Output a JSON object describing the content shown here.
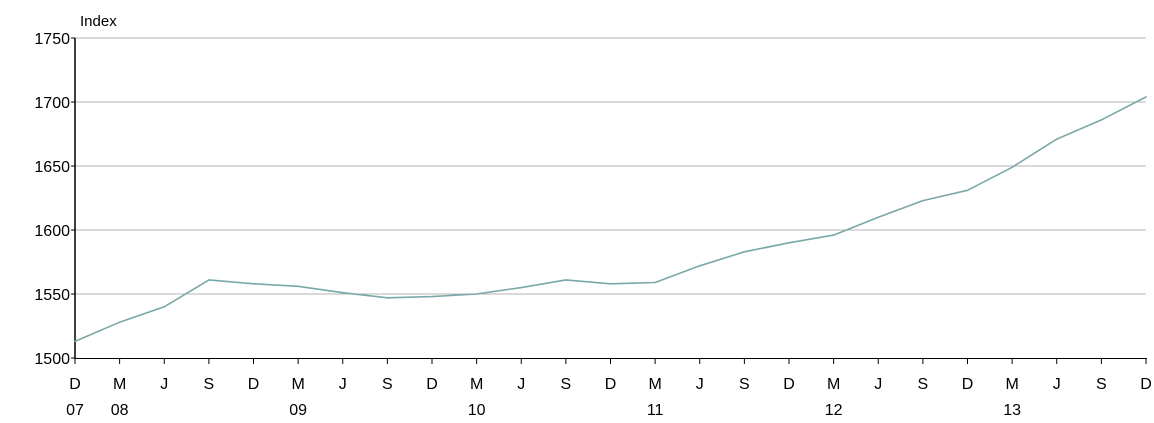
{
  "chart_data": {
    "type": "line",
    "title": "",
    "ylabel": "Index",
    "xlabel": "",
    "ylim": [
      1500,
      1750
    ],
    "yticks": [
      "1750",
      "1700",
      "1650",
      "1600",
      "1550",
      "1500"
    ],
    "grid": true,
    "colors": {
      "line": "#7aa8a8",
      "grid": "#b4b4b4",
      "axis": "#000000"
    },
    "x_tick_labels": [
      "D",
      "M",
      "J",
      "S",
      "D",
      "M",
      "J",
      "S",
      "D",
      "M",
      "J",
      "S",
      "D",
      "M",
      "J",
      "S",
      "D",
      "M",
      "J",
      "S",
      "D",
      "M",
      "J",
      "S",
      "D"
    ],
    "year_labels": [
      {
        "index": 0,
        "label": "07"
      },
      {
        "index": 1,
        "label": "08"
      },
      {
        "index": 5,
        "label": "09"
      },
      {
        "index": 9,
        "label": "10"
      },
      {
        "index": 13,
        "label": "11"
      },
      {
        "index": 17,
        "label": "12"
      },
      {
        "index": 21,
        "label": "13"
      }
    ],
    "series": [
      {
        "values": [
          1513,
          1528,
          1540,
          1561,
          1558,
          1556,
          1551,
          1547,
          1548,
          1550,
          1555,
          1561,
          1558,
          1559,
          1572,
          1583,
          1590,
          1596,
          1610,
          1623,
          1631,
          1649,
          1671,
          1686,
          1704
        ]
      }
    ]
  }
}
